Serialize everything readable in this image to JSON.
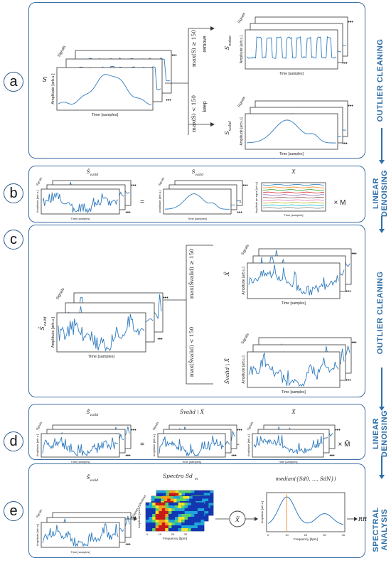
{
  "panels": [
    {
      "id": "a",
      "label": "a",
      "side": "OUTLIER CLEANING"
    },
    {
      "id": "b",
      "label": "b",
      "side": "LINEAR DENOISING"
    },
    {
      "id": "c",
      "label": "c",
      "side": "OUTLIER CLEANING"
    },
    {
      "id": "d",
      "label": "d",
      "side": "LINEAR DENOISING"
    },
    {
      "id": "e",
      "label": "e",
      "side": "SPECTRAL ANALYSIS"
    }
  ],
  "axis": {
    "time": "Time [samples]",
    "amp": "Amplitude [arb.u.]",
    "signals": "Signals",
    "dots": "•••",
    "freq": "Frequency [bpm]",
    "amp_per_signal": "Amplitude per signal [arb.u.]",
    "signals_windows": "Signals × Windows"
  },
  "a": {
    "s": "S",
    "cond_remove": "max(S) ≥ 150",
    "remove": "remove",
    "cond_keep": "max(S) < 150",
    "keep": "keep",
    "s_noise": "S",
    "s_noise_sub": "noise",
    "s_valid": "S",
    "s_valid_sub": "valid"
  },
  "b": {
    "lhs": "Ŝ",
    "lhs_sub": "valid",
    "eq": "=",
    "s_valid": "S",
    "s_valid_sub": "valid",
    "minus": "-",
    "x": "X",
    "times": "× M"
  },
  "c": {
    "lhs": "Ŝ",
    "lhs_sub": "valid",
    "cond_top": "max(Ŝvalid) ≥ 150",
    "cond_bot": "max(Ŝvalid) < 150",
    "xhat": "X̂",
    "diff": "Ŝvalid \\ X̂"
  },
  "d": {
    "lhs": "Ŝ̂",
    "lhs_sub": "valid",
    "eq": "=",
    "mid": "Ŝvalid \\ X̂",
    "minus": "-",
    "xhat": "X̂",
    "times": "× M̂"
  },
  "e": {
    "lhs": "Ŝ̂",
    "lhs_sub": "valid",
    "spectra": "Spectra Sd",
    "spectra_sub": "m",
    "median": "median({Sd0, ..., SdN})",
    "xtilde": "x̃",
    "rr": "RR",
    "heat_ticks": [
      "0",
      "10",
      "20",
      "30"
    ],
    "med_xticks": [
      "0",
      "10",
      "20",
      "30",
      "40"
    ],
    "peak_bpm": 10
  }
}
